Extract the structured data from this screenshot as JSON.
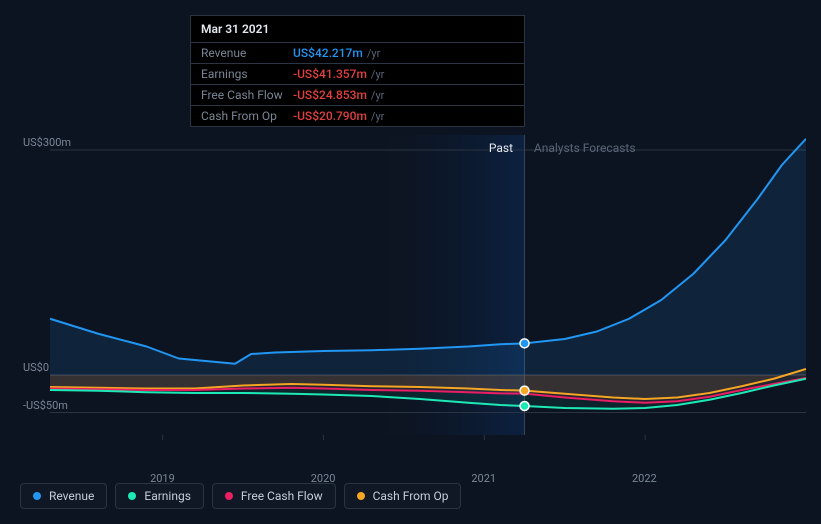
{
  "tooltip": {
    "date": "Mar 31 2021",
    "rows": [
      {
        "label": "Revenue",
        "value": "US$42.217m",
        "color": "#2196f3",
        "suffix": "/yr"
      },
      {
        "label": "Earnings",
        "value": "-US$41.357m",
        "color": "#e2403f",
        "suffix": "/yr"
      },
      {
        "label": "Free Cash Flow",
        "value": "-US$24.853m",
        "color": "#e2403f",
        "suffix": "/yr"
      },
      {
        "label": "Cash From Op",
        "value": "-US$20.790m",
        "color": "#e2403f",
        "suffix": "/yr"
      }
    ]
  },
  "chart": {
    "type": "area",
    "background": "#0d1421",
    "grid_color": "#2a3442",
    "text_color": "#7a8696",
    "past_label": "Past",
    "forecast_label": "Analysts Forecasts",
    "y_axis": {
      "min": -80,
      "max": 320,
      "ticks": [
        {
          "v": 300,
          "label": "US$300m"
        },
        {
          "v": 0,
          "label": "US$0"
        },
        {
          "v": -50,
          "label": "-US$50m"
        }
      ]
    },
    "x_axis": {
      "min": 2018.3,
      "max": 2023.0,
      "ticks": [
        {
          "v": 2019,
          "label": "2019"
        },
        {
          "v": 2020,
          "label": "2020"
        },
        {
          "v": 2021,
          "label": "2021"
        },
        {
          "v": 2022,
          "label": "2022"
        }
      ],
      "hover_x": 2021.25,
      "forecast_start": 2021.25
    },
    "series": [
      {
        "name": "Revenue",
        "color": "#2196f3",
        "fill": "rgba(33,150,243,0.12)",
        "marker": true,
        "points": [
          [
            2018.3,
            75
          ],
          [
            2018.6,
            55
          ],
          [
            2018.9,
            38
          ],
          [
            2019.1,
            22
          ],
          [
            2019.3,
            18
          ],
          [
            2019.45,
            15
          ],
          [
            2019.55,
            28
          ],
          [
            2019.7,
            30
          ],
          [
            2020.0,
            32
          ],
          [
            2020.3,
            33
          ],
          [
            2020.6,
            35
          ],
          [
            2020.9,
            38
          ],
          [
            2021.1,
            41
          ],
          [
            2021.25,
            42.217
          ],
          [
            2021.5,
            48
          ],
          [
            2021.7,
            58
          ],
          [
            2021.9,
            75
          ],
          [
            2022.1,
            100
          ],
          [
            2022.3,
            135
          ],
          [
            2022.5,
            180
          ],
          [
            2022.7,
            235
          ],
          [
            2022.85,
            280
          ],
          [
            2023.0,
            315
          ]
        ]
      },
      {
        "name": "Cash From Op",
        "color": "#f5a623",
        "fill": "rgba(245,166,35,0.10)",
        "marker": true,
        "points": [
          [
            2018.3,
            -16
          ],
          [
            2018.6,
            -17
          ],
          [
            2018.9,
            -18
          ],
          [
            2019.2,
            -18
          ],
          [
            2019.5,
            -14
          ],
          [
            2019.8,
            -12
          ],
          [
            2020.0,
            -13
          ],
          [
            2020.3,
            -15
          ],
          [
            2020.6,
            -16
          ],
          [
            2020.9,
            -18
          ],
          [
            2021.1,
            -20
          ],
          [
            2021.25,
            -20.79
          ],
          [
            2021.5,
            -25
          ],
          [
            2021.8,
            -30
          ],
          [
            2022.0,
            -32
          ],
          [
            2022.2,
            -30
          ],
          [
            2022.4,
            -24
          ],
          [
            2022.6,
            -15
          ],
          [
            2022.8,
            -5
          ],
          [
            2023.0,
            8
          ]
        ]
      },
      {
        "name": "Free Cash Flow",
        "color": "#e91e63",
        "fill": "rgba(233,30,99,0.10)",
        "marker": false,
        "points": [
          [
            2018.3,
            -18
          ],
          [
            2018.6,
            -19
          ],
          [
            2018.9,
            -20
          ],
          [
            2019.2,
            -20
          ],
          [
            2019.5,
            -18
          ],
          [
            2019.8,
            -17
          ],
          [
            2020.0,
            -18
          ],
          [
            2020.3,
            -20
          ],
          [
            2020.6,
            -21
          ],
          [
            2020.9,
            -23
          ],
          [
            2021.1,
            -24.5
          ],
          [
            2021.25,
            -24.853
          ],
          [
            2021.5,
            -30
          ],
          [
            2021.8,
            -35
          ],
          [
            2022.0,
            -37
          ],
          [
            2022.2,
            -35
          ],
          [
            2022.4,
            -29
          ],
          [
            2022.6,
            -20
          ],
          [
            2022.8,
            -12
          ],
          [
            2023.0,
            -4
          ]
        ]
      },
      {
        "name": "Earnings",
        "color": "#1de9b6",
        "fill": "rgba(29,233,182,0.08)",
        "marker": true,
        "points": [
          [
            2018.3,
            -20
          ],
          [
            2018.6,
            -21
          ],
          [
            2018.9,
            -23
          ],
          [
            2019.2,
            -24
          ],
          [
            2019.5,
            -24
          ],
          [
            2019.8,
            -25
          ],
          [
            2020.0,
            -26
          ],
          [
            2020.3,
            -28
          ],
          [
            2020.6,
            -32
          ],
          [
            2020.9,
            -37
          ],
          [
            2021.1,
            -40
          ],
          [
            2021.25,
            -41.357
          ],
          [
            2021.5,
            -44
          ],
          [
            2021.8,
            -45
          ],
          [
            2022.0,
            -44
          ],
          [
            2022.2,
            -40
          ],
          [
            2022.4,
            -33
          ],
          [
            2022.6,
            -24
          ],
          [
            2022.8,
            -14
          ],
          [
            2023.0,
            -5
          ]
        ]
      }
    ],
    "legend": [
      {
        "label": "Revenue",
        "color": "#2196f3"
      },
      {
        "label": "Earnings",
        "color": "#1de9b6"
      },
      {
        "label": "Free Cash Flow",
        "color": "#e91e63"
      },
      {
        "label": "Cash From Op",
        "color": "#f5a623"
      }
    ]
  }
}
